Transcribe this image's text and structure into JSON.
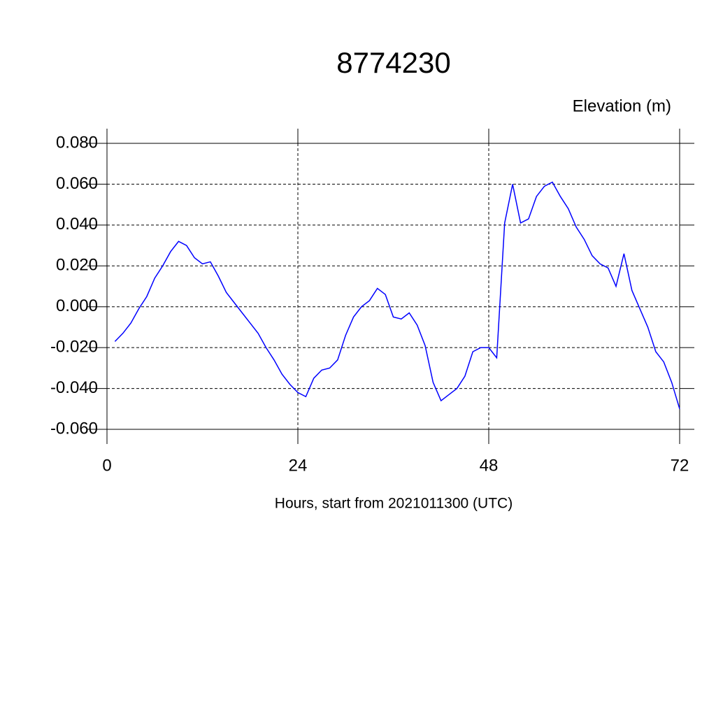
{
  "chart_data": {
    "type": "line",
    "title": "8774230",
    "y_label": "Elevation (m)",
    "x_label": "Hours, start from 2021011300 (UTC)",
    "x": [
      1,
      2,
      3,
      4,
      5,
      6,
      7,
      8,
      9,
      10,
      11,
      12,
      13,
      14,
      15,
      16,
      17,
      18,
      19,
      20,
      21,
      22,
      23,
      24,
      25,
      26,
      27,
      28,
      29,
      30,
      31,
      32,
      33,
      34,
      35,
      36,
      37,
      38,
      39,
      40,
      41,
      42,
      43,
      44,
      45,
      46,
      47,
      48,
      49,
      50,
      51,
      52,
      53,
      54,
      55,
      56,
      57,
      58,
      59,
      60,
      61,
      62,
      63,
      64,
      65,
      66,
      67,
      68,
      69,
      70,
      71,
      72
    ],
    "series": [
      {
        "name": "Elevation",
        "color": "#0000ff",
        "values": [
          -0.017,
          -0.013,
          -0.008,
          -0.001,
          0.005,
          0.014,
          0.02,
          0.027,
          0.032,
          0.03,
          0.024,
          0.021,
          0.022,
          0.015,
          0.007,
          0.002,
          -0.003,
          -0.008,
          -0.013,
          -0.02,
          -0.026,
          -0.033,
          -0.038,
          -0.042,
          -0.044,
          -0.035,
          -0.031,
          -0.03,
          -0.026,
          -0.014,
          -0.005,
          0.0,
          0.003,
          0.009,
          0.006,
          -0.005,
          -0.006,
          -0.003,
          -0.009,
          -0.019,
          -0.037,
          -0.046,
          -0.043,
          -0.04,
          -0.034,
          -0.022,
          -0.02,
          -0.02,
          -0.025,
          0.041,
          0.06,
          0.041,
          0.043,
          0.054,
          0.059,
          0.061,
          0.054,
          0.048,
          0.039,
          0.033,
          0.025,
          0.021,
          0.019,
          0.01,
          0.026,
          0.008,
          -0.001,
          -0.01,
          -0.022,
          -0.027,
          -0.037,
          -0.05
        ]
      }
    ],
    "xlim": [
      0,
      72
    ],
    "xticks": [
      0,
      24,
      48,
      72
    ],
    "ylim": [
      -0.06,
      0.08
    ],
    "yticks": [
      {
        "value": -0.06,
        "label": "-0.060"
      },
      {
        "value": -0.04,
        "label": "-0.040"
      },
      {
        "value": -0.02,
        "label": "-0.020"
      },
      {
        "value": 0,
        "label": "0.000"
      },
      {
        "value": 0.02,
        "label": "0.020"
      },
      {
        "value": 0.04,
        "label": "0.040"
      },
      {
        "value": 0.06,
        "label": "0.060"
      },
      {
        "value": 0.08,
        "label": "0.080"
      }
    ],
    "grid": true
  }
}
